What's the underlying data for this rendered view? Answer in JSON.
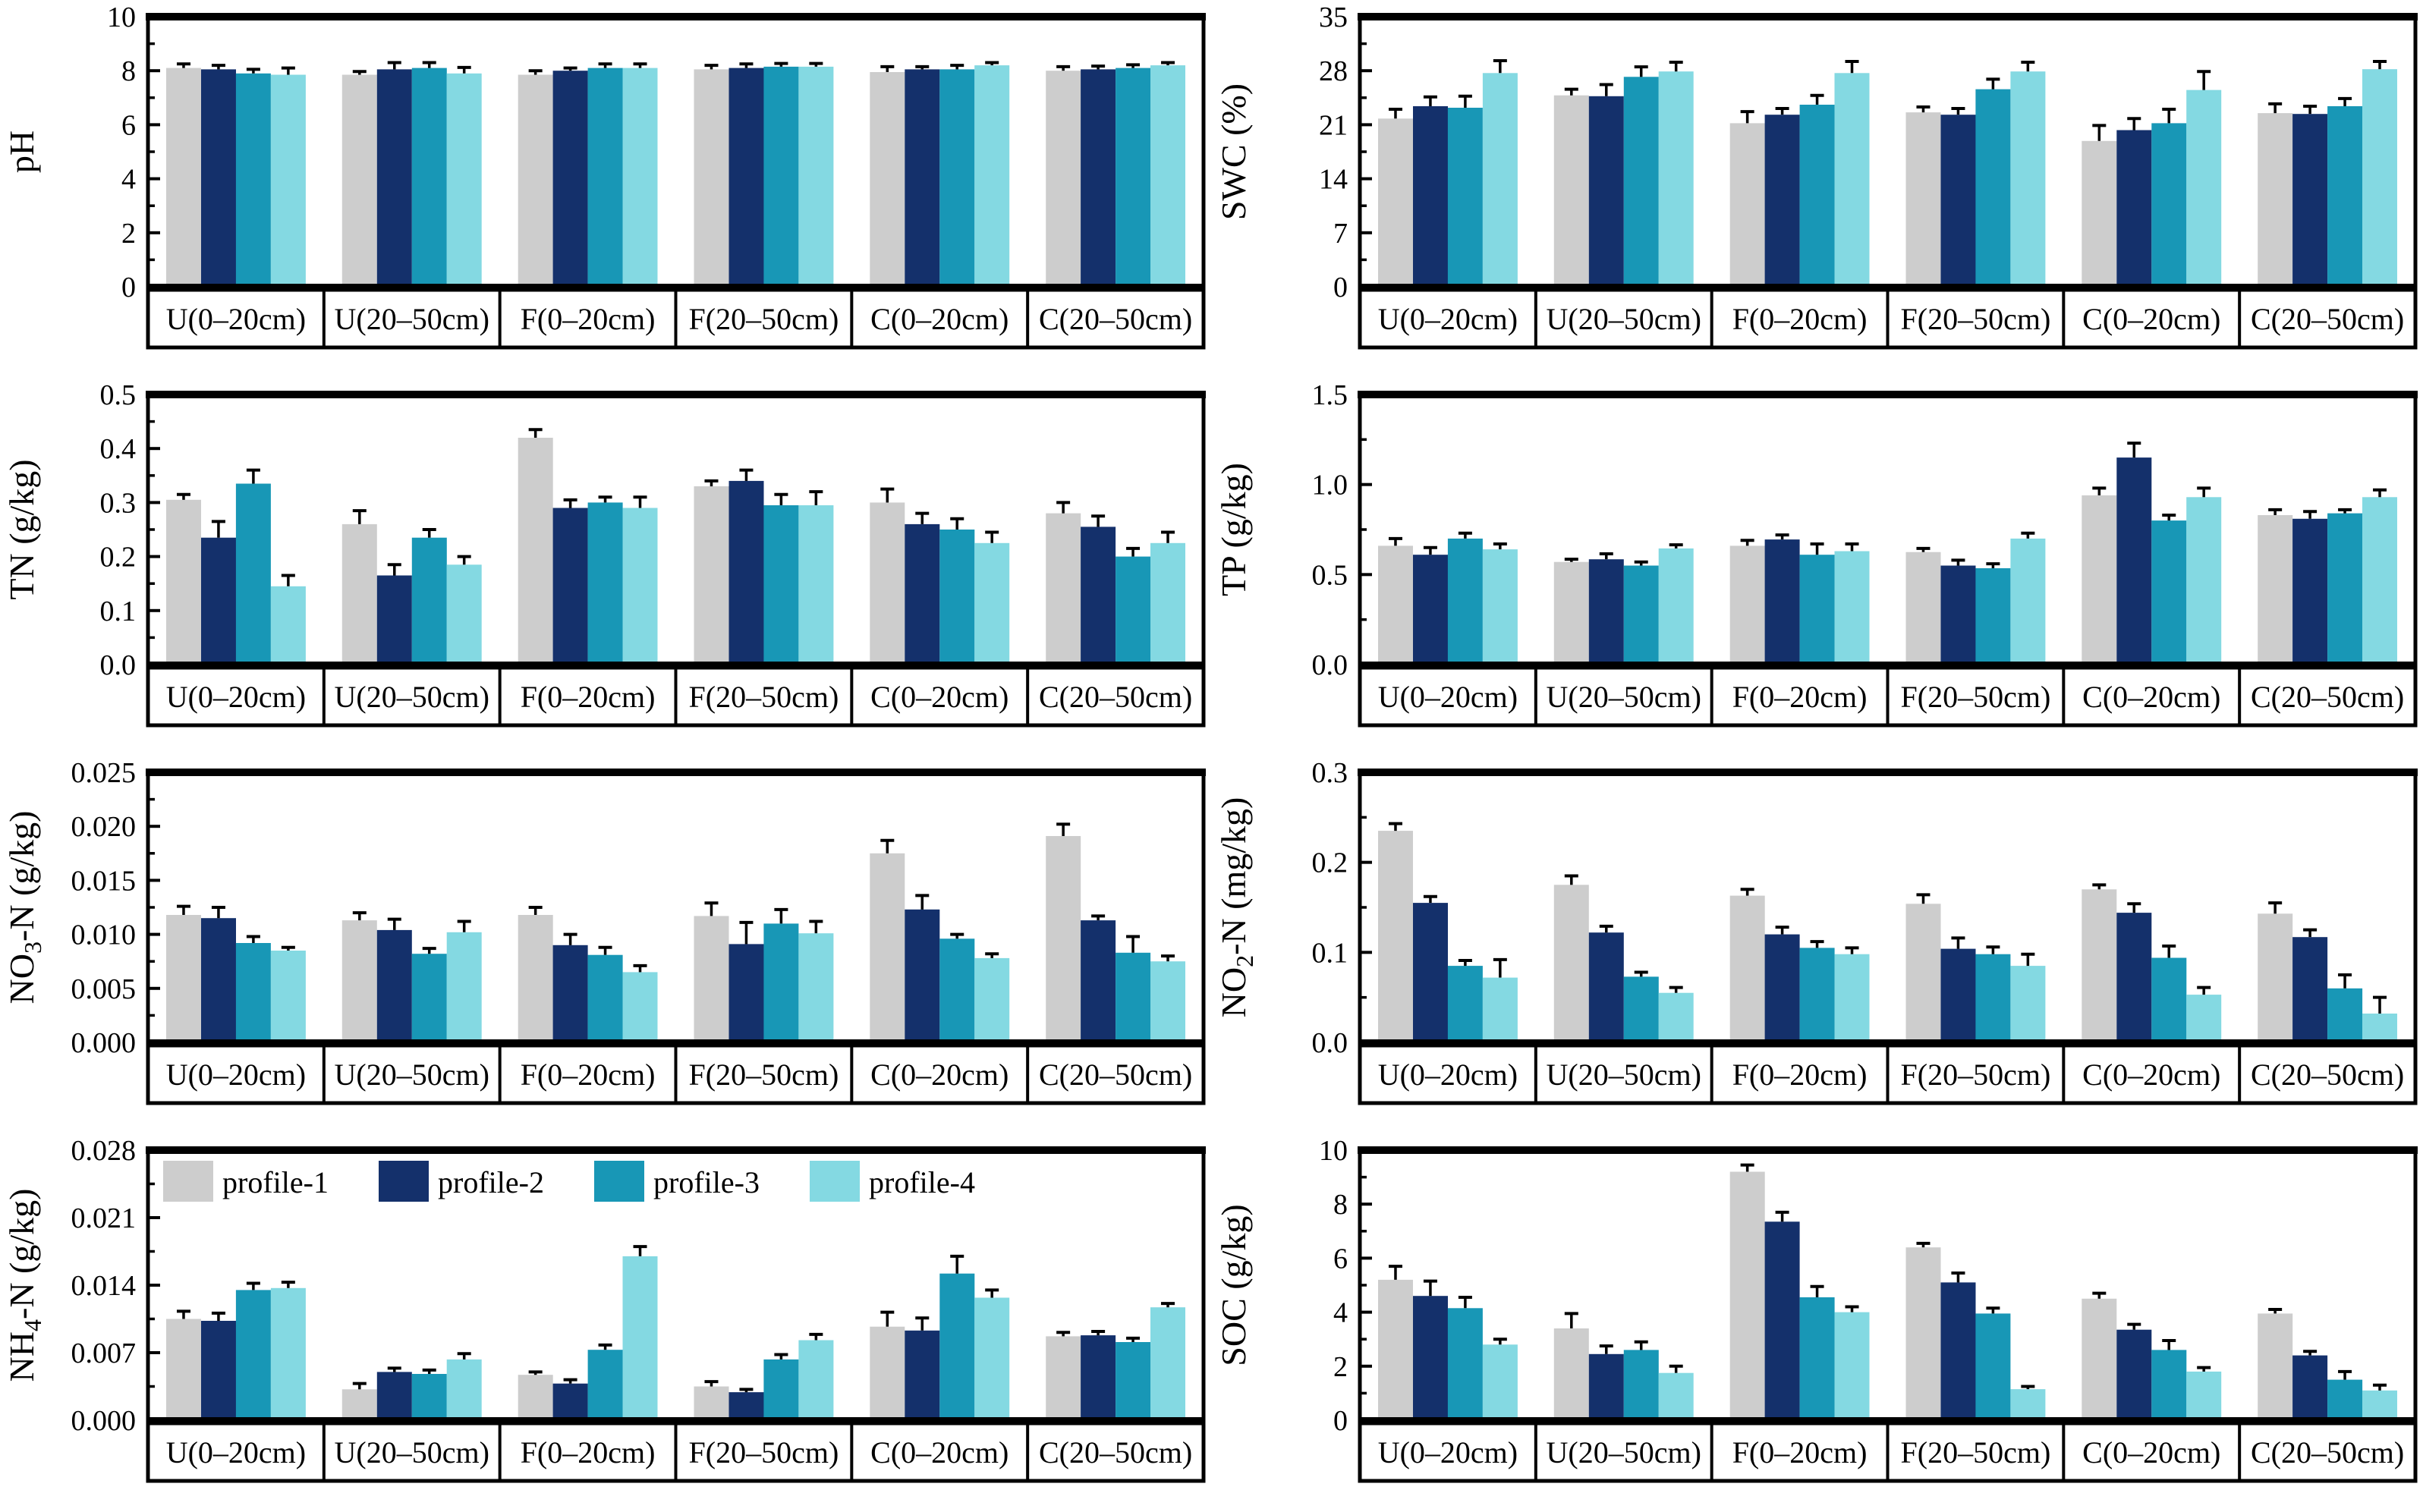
{
  "figure_title": "",
  "legend": {
    "labels": [
      "profile-1",
      "profile-2",
      "profile-3",
      "profile-4"
    ],
    "colors": [
      "#cdcdcd",
      "#14306b",
      "#1897b6",
      "#84d9e2"
    ]
  },
  "categories": [
    "U(0–20cm)",
    "U(20–50cm)",
    "F(0–20cm)",
    "F(20–50cm)",
    "C(0–20cm)",
    "C(20–50cm)"
  ],
  "chart_data": [
    {
      "id": "ph",
      "type": "bar",
      "ylabel": "pH",
      "ylabel_parts": [
        {
          "t": "pH"
        }
      ],
      "ylim": [
        0,
        10
      ],
      "ytick_values": [
        0,
        2,
        4,
        6,
        8,
        10
      ],
      "ytick_labels": [
        "0",
        "2",
        "4",
        "6",
        "8",
        "10"
      ],
      "grid": false,
      "legend": false,
      "categories": [
        "U(0–20cm)",
        "U(20–50cm)",
        "F(0–20cm)",
        "F(20–50cm)",
        "C(0–20cm)",
        "C(20–50cm)"
      ],
      "series": [
        {
          "name": "profile-1",
          "color": "#cdcdcd",
          "values": [
            8.1,
            7.85,
            7.85,
            8.05,
            7.95,
            8.0
          ],
          "errors": [
            0.15,
            0.12,
            0.15,
            0.15,
            0.2,
            0.15
          ]
        },
        {
          "name": "profile-2",
          "color": "#14306b",
          "values": [
            8.05,
            8.05,
            8.0,
            8.1,
            8.05,
            8.05
          ],
          "errors": [
            0.15,
            0.25,
            0.1,
            0.15,
            0.1,
            0.12
          ]
        },
        {
          "name": "profile-3",
          "color": "#1897b6",
          "values": [
            7.9,
            8.1,
            8.1,
            8.15,
            8.05,
            8.1
          ],
          "errors": [
            0.15,
            0.2,
            0.15,
            0.12,
            0.15,
            0.12
          ]
        },
        {
          "name": "profile-4",
          "color": "#84d9e2",
          "values": [
            7.85,
            7.9,
            8.1,
            8.15,
            8.2,
            8.2
          ],
          "errors": [
            0.25,
            0.22,
            0.15,
            0.12,
            0.1,
            0.1
          ]
        }
      ]
    },
    {
      "id": "swc",
      "type": "bar",
      "ylabel": "SWC (%)",
      "ylabel_parts": [
        {
          "t": "SWC (%)"
        }
      ],
      "ylim": [
        0,
        35
      ],
      "ytick_values": [
        0,
        7,
        14,
        21,
        28,
        35
      ],
      "ytick_labels": [
        "0",
        "7",
        "14",
        "21",
        "28",
        "35"
      ],
      "grid": false,
      "legend": false,
      "categories": [
        "U(0–20cm)",
        "U(20–50cm)",
        "F(0–20cm)",
        "F(20–50cm)",
        "C(0–20cm)",
        "C(20–50cm)"
      ],
      "series": [
        {
          "name": "profile-1",
          "color": "#cdcdcd",
          "values": [
            21.8,
            24.8,
            21.2,
            22.6,
            18.9,
            22.5
          ],
          "errors": [
            1.2,
            0.8,
            1.5,
            0.7,
            2.0,
            1.2
          ]
        },
        {
          "name": "profile-2",
          "color": "#14306b",
          "values": [
            23.4,
            24.7,
            22.3,
            22.3,
            20.3,
            22.4
          ],
          "errors": [
            1.2,
            1.5,
            0.8,
            0.8,
            1.5,
            1.0
          ]
        },
        {
          "name": "profile-3",
          "color": "#1897b6",
          "values": [
            23.2,
            27.2,
            23.6,
            25.6,
            21.2,
            23.4
          ],
          "errors": [
            1.5,
            1.3,
            1.2,
            1.3,
            1.8,
            1.0
          ]
        },
        {
          "name": "profile-4",
          "color": "#84d9e2",
          "values": [
            27.7,
            27.9,
            27.7,
            27.9,
            25.5,
            28.2
          ],
          "errors": [
            1.6,
            1.2,
            1.5,
            1.2,
            2.4,
            1.0
          ]
        }
      ]
    },
    {
      "id": "tn",
      "type": "bar",
      "ylabel": "TN (g/kg)",
      "ylabel_parts": [
        {
          "t": "TN (g/kg)"
        }
      ],
      "ylim": [
        0,
        0.5
      ],
      "ytick_values": [
        0,
        0.1,
        0.2,
        0.3,
        0.4,
        0.5
      ],
      "ytick_labels": [
        "0.0",
        "0.1",
        "0.2",
        "0.3",
        "0.4",
        "0.5"
      ],
      "grid": false,
      "legend": false,
      "categories": [
        "U(0–20cm)",
        "U(20–50cm)",
        "F(0–20cm)",
        "F(20–50cm)",
        "C(0–20cm)",
        "C(20–50cm)"
      ],
      "series": [
        {
          "name": "profile-1",
          "color": "#cdcdcd",
          "values": [
            0.305,
            0.26,
            0.42,
            0.33,
            0.3,
            0.28
          ],
          "errors": [
            0.01,
            0.025,
            0.015,
            0.01,
            0.025,
            0.02
          ]
        },
        {
          "name": "profile-2",
          "color": "#14306b",
          "values": [
            0.235,
            0.165,
            0.29,
            0.34,
            0.26,
            0.255
          ],
          "errors": [
            0.03,
            0.02,
            0.015,
            0.02,
            0.02,
            0.02
          ]
        },
        {
          "name": "profile-3",
          "color": "#1897b6",
          "values": [
            0.335,
            0.235,
            0.3,
            0.295,
            0.25,
            0.2
          ],
          "errors": [
            0.025,
            0.015,
            0.01,
            0.02,
            0.02,
            0.015
          ]
        },
        {
          "name": "profile-4",
          "color": "#84d9e2",
          "values": [
            0.145,
            0.185,
            0.29,
            0.295,
            0.225,
            0.225
          ],
          "errors": [
            0.02,
            0.015,
            0.02,
            0.025,
            0.02,
            0.02
          ]
        }
      ]
    },
    {
      "id": "tp",
      "type": "bar",
      "ylabel": "TP (g/kg)",
      "ylabel_parts": [
        {
          "t": "TP (g/kg)"
        }
      ],
      "ylim": [
        0,
        1.5
      ],
      "ytick_values": [
        0,
        0.5,
        1.0,
        1.5
      ],
      "ytick_labels": [
        "0.0",
        "0.5",
        "1.0",
        "1.5"
      ],
      "grid": false,
      "legend": false,
      "categories": [
        "U(0–20cm)",
        "U(20–50cm)",
        "F(0–20cm)",
        "F(20–50cm)",
        "C(0–20cm)",
        "C(20–50cm)"
      ],
      "series": [
        {
          "name": "profile-1",
          "color": "#cdcdcd",
          "values": [
            0.66,
            0.57,
            0.66,
            0.625,
            0.94,
            0.83
          ],
          "errors": [
            0.04,
            0.015,
            0.03,
            0.02,
            0.04,
            0.03
          ]
        },
        {
          "name": "profile-2",
          "color": "#14306b",
          "values": [
            0.61,
            0.585,
            0.695,
            0.55,
            1.15,
            0.81
          ],
          "errors": [
            0.04,
            0.03,
            0.025,
            0.03,
            0.08,
            0.04
          ]
        },
        {
          "name": "profile-3",
          "color": "#1897b6",
          "values": [
            0.7,
            0.55,
            0.61,
            0.535,
            0.8,
            0.84
          ],
          "errors": [
            0.03,
            0.02,
            0.06,
            0.025,
            0.03,
            0.02
          ]
        },
        {
          "name": "profile-4",
          "color": "#84d9e2",
          "values": [
            0.64,
            0.645,
            0.63,
            0.7,
            0.93,
            0.93
          ],
          "errors": [
            0.03,
            0.02,
            0.04,
            0.03,
            0.05,
            0.04
          ]
        }
      ]
    },
    {
      "id": "no3",
      "type": "bar",
      "ylabel": "NO3-N (g/kg)",
      "ylabel_parts": [
        {
          "t": "NO"
        },
        {
          "t": "3",
          "sub": true
        },
        {
          "t": "-N (g/kg)"
        }
      ],
      "ylim": [
        0,
        0.025
      ],
      "ytick_values": [
        0,
        0.005,
        0.01,
        0.015,
        0.02,
        0.025
      ],
      "ytick_labels": [
        "0.000",
        "0.005",
        "0.010",
        "0.015",
        "0.020",
        "0.025"
      ],
      "grid": false,
      "legend": false,
      "categories": [
        "U(0–20cm)",
        "U(20–50cm)",
        "F(0–20cm)",
        "F(20–50cm)",
        "C(0–20cm)",
        "C(20–50cm)"
      ],
      "series": [
        {
          "name": "profile-1",
          "color": "#cdcdcd",
          "values": [
            0.0118,
            0.0113,
            0.0118,
            0.0117,
            0.0175,
            0.0191
          ],
          "errors": [
            0.0008,
            0.0007,
            0.0007,
            0.0012,
            0.0012,
            0.0011
          ]
        },
        {
          "name": "profile-2",
          "color": "#14306b",
          "values": [
            0.0115,
            0.0104,
            0.009,
            0.0091,
            0.0123,
            0.0113
          ],
          "errors": [
            0.001,
            0.001,
            0.001,
            0.002,
            0.0013,
            0.0004
          ]
        },
        {
          "name": "profile-3",
          "color": "#1897b6",
          "values": [
            0.0092,
            0.0082,
            0.0081,
            0.011,
            0.0096,
            0.0083
          ],
          "errors": [
            0.0006,
            0.0005,
            0.0007,
            0.0013,
            0.0004,
            0.0015
          ]
        },
        {
          "name": "profile-4",
          "color": "#84d9e2",
          "values": [
            0.0085,
            0.0102,
            0.0065,
            0.0101,
            0.0078,
            0.0075
          ],
          "errors": [
            0.0003,
            0.001,
            0.0006,
            0.0011,
            0.0004,
            0.0005
          ]
        }
      ]
    },
    {
      "id": "no2",
      "type": "bar",
      "ylabel": "NO2-N (mg/kg)",
      "ylabel_parts": [
        {
          "t": "NO"
        },
        {
          "t": "2",
          "sub": true
        },
        {
          "t": "-N (mg/kg)"
        }
      ],
      "ylim": [
        0,
        0.3
      ],
      "ytick_values": [
        0,
        0.1,
        0.2,
        0.3
      ],
      "ytick_labels": [
        "0.0",
        "0.1",
        "0.2",
        "0.3"
      ],
      "grid": false,
      "legend": false,
      "categories": [
        "U(0–20cm)",
        "U(20–50cm)",
        "F(0–20cm)",
        "F(20–50cm)",
        "C(0–20cm)",
        "C(20–50cm)"
      ],
      "series": [
        {
          "name": "profile-1",
          "color": "#cdcdcd",
          "values": [
            0.235,
            0.175,
            0.163,
            0.154,
            0.17,
            0.143
          ],
          "errors": [
            0.008,
            0.01,
            0.007,
            0.01,
            0.005,
            0.012
          ]
        },
        {
          "name": "profile-2",
          "color": "#14306b",
          "values": [
            0.155,
            0.122,
            0.12,
            0.104,
            0.144,
            0.117
          ],
          "errors": [
            0.007,
            0.007,
            0.008,
            0.012,
            0.01,
            0.008
          ]
        },
        {
          "name": "profile-3",
          "color": "#1897b6",
          "values": [
            0.085,
            0.073,
            0.105,
            0.098,
            0.094,
            0.06
          ],
          "errors": [
            0.006,
            0.005,
            0.007,
            0.008,
            0.013,
            0.015
          ]
        },
        {
          "name": "profile-4",
          "color": "#84d9e2",
          "values": [
            0.072,
            0.055,
            0.098,
            0.085,
            0.053,
            0.032
          ],
          "errors": [
            0.02,
            0.006,
            0.007,
            0.013,
            0.008,
            0.018
          ]
        }
      ]
    },
    {
      "id": "nh4",
      "type": "bar",
      "ylabel": "NH4-N (g/kg)",
      "ylabel_parts": [
        {
          "t": "NH"
        },
        {
          "t": "4",
          "sub": true
        },
        {
          "t": "-N (g/kg)"
        }
      ],
      "ylim": [
        0,
        0.028
      ],
      "ytick_values": [
        0,
        0.007,
        0.014,
        0.021,
        0.028
      ],
      "ytick_labels": [
        "0.000",
        "0.007",
        "0.014",
        "0.021",
        "0.028"
      ],
      "grid": false,
      "legend": true,
      "categories": [
        "U(0–20cm)",
        "U(20–50cm)",
        "F(0–20cm)",
        "F(20–50cm)",
        "C(0–20cm)",
        "C(20–50cm)"
      ],
      "series": [
        {
          "name": "profile-1",
          "color": "#cdcdcd",
          "values": [
            0.0105,
            0.0032,
            0.0047,
            0.0035,
            0.0097,
            0.0087
          ],
          "errors": [
            0.0008,
            0.0006,
            0.0003,
            0.0005,
            0.0015,
            0.0004
          ]
        },
        {
          "name": "profile-2",
          "color": "#14306b",
          "values": [
            0.0103,
            0.005,
            0.0038,
            0.0029,
            0.0093,
            0.0088
          ],
          "errors": [
            0.0008,
            0.0004,
            0.0004,
            0.0003,
            0.0013,
            0.0004
          ]
        },
        {
          "name": "profile-3",
          "color": "#1897b6",
          "values": [
            0.0135,
            0.0048,
            0.0073,
            0.0063,
            0.0152,
            0.0081
          ],
          "errors": [
            0.0007,
            0.0004,
            0.0005,
            0.0005,
            0.0018,
            0.0004
          ]
        },
        {
          "name": "profile-4",
          "color": "#84d9e2",
          "values": [
            0.0137,
            0.0063,
            0.017,
            0.0083,
            0.0127,
            0.0117
          ],
          "errors": [
            0.0006,
            0.0006,
            0.001,
            0.0006,
            0.0008,
            0.0004
          ]
        }
      ]
    },
    {
      "id": "soc",
      "type": "bar",
      "ylabel": "SOC (g/kg)",
      "ylabel_parts": [
        {
          "t": "SOC (g/kg)"
        }
      ],
      "ylim": [
        0,
        10
      ],
      "ytick_values": [
        0,
        2,
        4,
        6,
        8,
        10
      ],
      "ytick_labels": [
        "0",
        "2",
        "4",
        "6",
        "8",
        "10"
      ],
      "grid": false,
      "legend": false,
      "categories": [
        "U(0–20cm)",
        "U(20–50cm)",
        "F(0–20cm)",
        "F(20–50cm)",
        "C(0–20cm)",
        "C(20–50cm)"
      ],
      "series": [
        {
          "name": "profile-1",
          "color": "#cdcdcd",
          "values": [
            5.2,
            3.4,
            9.2,
            6.4,
            4.5,
            3.95
          ],
          "errors": [
            0.5,
            0.55,
            0.25,
            0.15,
            0.2,
            0.15
          ]
        },
        {
          "name": "profile-2",
          "color": "#14306b",
          "values": [
            4.6,
            2.45,
            7.35,
            5.1,
            3.35,
            2.4
          ],
          "errors": [
            0.55,
            0.3,
            0.35,
            0.35,
            0.2,
            0.15
          ]
        },
        {
          "name": "profile-3",
          "color": "#1897b6",
          "values": [
            4.15,
            2.6,
            4.55,
            3.95,
            2.6,
            1.5
          ],
          "errors": [
            0.4,
            0.3,
            0.4,
            0.2,
            0.35,
            0.3
          ]
        },
        {
          "name": "profile-4",
          "color": "#84d9e2",
          "values": [
            2.8,
            1.75,
            4.0,
            1.15,
            1.8,
            1.1
          ],
          "errors": [
            0.2,
            0.25,
            0.2,
            0.1,
            0.15,
            0.2
          ]
        }
      ]
    }
  ]
}
